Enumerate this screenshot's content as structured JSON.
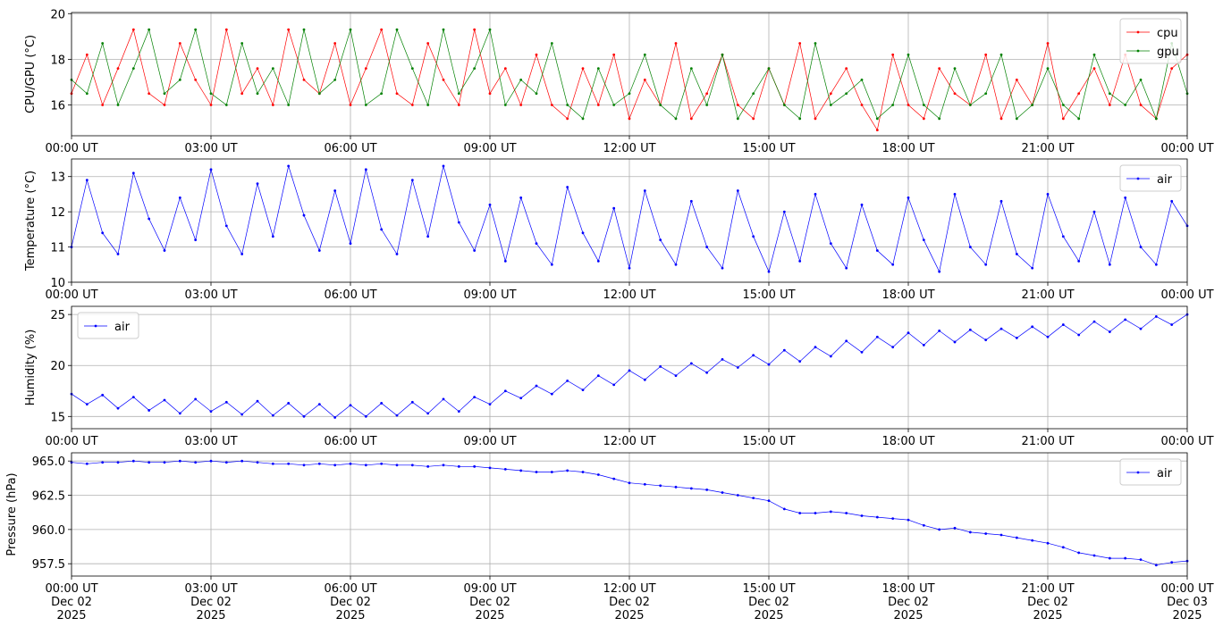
{
  "chart_data": [
    {
      "type": "line",
      "ylabel": "CPU/GPU (°C)",
      "legend": "upper right",
      "grid": true,
      "x": [
        0,
        20,
        40,
        60,
        80,
        100,
        120,
        140,
        160,
        180,
        200,
        220,
        240,
        260,
        280,
        300,
        320,
        340,
        360,
        380,
        400,
        420,
        440,
        460,
        480,
        500,
        520,
        540,
        560,
        580,
        600,
        620,
        640,
        660,
        680,
        700,
        720,
        740,
        760,
        780,
        800,
        820,
        840,
        860,
        880,
        900,
        920,
        940,
        960,
        980,
        1000,
        1020,
        1040,
        1060,
        1080,
        1100,
        1120,
        1140,
        1160,
        1180,
        1200,
        1220,
        1240,
        1260,
        1280,
        1300,
        1320,
        1340,
        1360,
        1380,
        1400,
        1420,
        1440
      ],
      "series": [
        {
          "name": "cpu",
          "color": "#ff0000",
          "values": [
            16.5,
            18.2,
            16.0,
            17.6,
            19.3,
            16.5,
            16.0,
            18.7,
            17.1,
            16.0,
            19.3,
            16.5,
            17.6,
            16.0,
            19.3,
            17.1,
            16.5,
            18.7,
            16.0,
            17.6,
            19.3,
            16.5,
            16.0,
            18.7,
            17.1,
            16.0,
            19.3,
            16.5,
            17.6,
            16.0,
            18.2,
            16.0,
            15.4,
            17.6,
            16.0,
            18.2,
            15.4,
            17.1,
            16.0,
            18.7,
            15.4,
            16.5,
            18.2,
            16.0,
            15.4,
            17.6,
            16.0,
            18.7,
            15.4,
            16.5,
            17.6,
            16.0,
            14.9,
            18.2,
            16.0,
            15.4,
            17.6,
            16.5,
            16.0,
            18.2,
            15.4,
            17.1,
            16.0,
            18.7,
            15.4,
            16.5,
            17.6,
            16.0,
            18.2,
            16.0,
            15.4,
            17.6,
            18.2
          ]
        },
        {
          "name": "gpu",
          "color": "#008000",
          "values": [
            17.1,
            16.5,
            18.7,
            16.0,
            17.6,
            19.3,
            16.5,
            17.1,
            19.3,
            16.5,
            16.0,
            18.7,
            16.5,
            17.6,
            16.0,
            19.3,
            16.5,
            17.1,
            19.3,
            16.0,
            16.5,
            19.3,
            17.6,
            16.0,
            19.3,
            16.5,
            17.6,
            19.3,
            16.0,
            17.1,
            16.5,
            18.7,
            16.0,
            15.4,
            17.6,
            16.0,
            16.5,
            18.2,
            16.0,
            15.4,
            17.6,
            16.0,
            18.2,
            15.4,
            16.5,
            17.6,
            16.0,
            15.4,
            18.7,
            16.0,
            16.5,
            17.1,
            15.4,
            16.0,
            18.2,
            16.0,
            15.4,
            17.6,
            16.0,
            16.5,
            18.2,
            15.4,
            16.0,
            17.6,
            16.0,
            15.4,
            18.2,
            16.5,
            16.0,
            17.1,
            15.4,
            18.7,
            16.5
          ]
        }
      ],
      "xlim": [
        0,
        1440
      ],
      "xticks": [
        {
          "value": 0,
          "label": "00:00 UT"
        },
        {
          "value": 180,
          "label": "03:00 UT"
        },
        {
          "value": 360,
          "label": "06:00 UT"
        },
        {
          "value": 540,
          "label": "09:00 UT"
        },
        {
          "value": 720,
          "label": "12:00 UT"
        },
        {
          "value": 900,
          "label": "15:00 UT"
        },
        {
          "value": 1080,
          "label": "18:00 UT"
        },
        {
          "value": 1260,
          "label": "21:00 UT"
        },
        {
          "value": 1440,
          "label": "00:00 UT"
        }
      ],
      "ylim": [
        14.65,
        20.05
      ],
      "yticks": [
        16,
        18,
        20
      ]
    },
    {
      "type": "line",
      "ylabel": "Temperature (°C)",
      "legend": "upper right",
      "grid": true,
      "x": [
        0,
        20,
        40,
        60,
        80,
        100,
        120,
        140,
        160,
        180,
        200,
        220,
        240,
        260,
        280,
        300,
        320,
        340,
        360,
        380,
        400,
        420,
        440,
        460,
        480,
        500,
        520,
        540,
        560,
        580,
        600,
        620,
        640,
        660,
        680,
        700,
        720,
        740,
        760,
        780,
        800,
        820,
        840,
        860,
        880,
        900,
        920,
        940,
        960,
        980,
        1000,
        1020,
        1040,
        1060,
        1080,
        1100,
        1120,
        1140,
        1160,
        1180,
        1200,
        1220,
        1240,
        1260,
        1280,
        1300,
        1320,
        1340,
        1360,
        1380,
        1400,
        1420,
        1440
      ],
      "series": [
        {
          "name": "air",
          "color": "#0000ff",
          "values": [
            11.0,
            12.9,
            11.4,
            10.8,
            13.1,
            11.8,
            10.9,
            12.4,
            11.2,
            13.2,
            11.6,
            10.8,
            12.8,
            11.3,
            13.3,
            11.9,
            10.9,
            12.6,
            11.1,
            13.2,
            11.5,
            10.8,
            12.9,
            11.3,
            13.3,
            11.7,
            10.9,
            12.2,
            10.6,
            12.4,
            11.1,
            10.5,
            12.7,
            11.4,
            10.6,
            12.1,
            10.4,
            12.6,
            11.2,
            10.5,
            12.3,
            11.0,
            10.4,
            12.6,
            11.3,
            10.3,
            12.0,
            10.6,
            12.5,
            11.1,
            10.4,
            12.2,
            10.9,
            10.5,
            12.4,
            11.2,
            10.3,
            12.5,
            11.0,
            10.5,
            12.3,
            10.8,
            10.4,
            12.5,
            11.3,
            10.6,
            12.0,
            10.5,
            12.4,
            11.0,
            10.5,
            12.3,
            11.6
          ]
        }
      ],
      "xlim": [
        0,
        1440
      ],
      "xticks": [
        {
          "value": 0,
          "label": "00:00 UT"
        },
        {
          "value": 180,
          "label": "03:00 UT"
        },
        {
          "value": 360,
          "label": "06:00 UT"
        },
        {
          "value": 540,
          "label": "09:00 UT"
        },
        {
          "value": 720,
          "label": "12:00 UT"
        },
        {
          "value": 900,
          "label": "15:00 UT"
        },
        {
          "value": 1080,
          "label": "18:00 UT"
        },
        {
          "value": 1260,
          "label": "21:00 UT"
        },
        {
          "value": 1440,
          "label": "00:00 UT"
        }
      ],
      "ylim": [
        10,
        13.5
      ],
      "yticks": [
        10,
        11,
        12,
        13
      ]
    },
    {
      "type": "line",
      "ylabel": "Humidity (%)",
      "legend": "upper left",
      "grid": true,
      "x": [
        0,
        20,
        40,
        60,
        80,
        100,
        120,
        140,
        160,
        180,
        200,
        220,
        240,
        260,
        280,
        300,
        320,
        340,
        360,
        380,
        400,
        420,
        440,
        460,
        480,
        500,
        520,
        540,
        560,
        580,
        600,
        620,
        640,
        660,
        680,
        700,
        720,
        740,
        760,
        780,
        800,
        820,
        840,
        860,
        880,
        900,
        920,
        940,
        960,
        980,
        1000,
        1020,
        1040,
        1060,
        1080,
        1100,
        1120,
        1140,
        1160,
        1180,
        1200,
        1220,
        1240,
        1260,
        1280,
        1300,
        1320,
        1340,
        1360,
        1380,
        1400,
        1420,
        1440
      ],
      "series": [
        {
          "name": "air",
          "color": "#0000ff",
          "values": [
            17.2,
            16.2,
            17.1,
            15.8,
            16.9,
            15.6,
            16.6,
            15.3,
            16.7,
            15.5,
            16.4,
            15.2,
            16.5,
            15.1,
            16.3,
            15.0,
            16.2,
            14.9,
            16.1,
            15.0,
            16.3,
            15.1,
            16.4,
            15.3,
            16.7,
            15.5,
            16.9,
            16.2,
            17.5,
            16.8,
            18.0,
            17.2,
            18.5,
            17.6,
            19.0,
            18.1,
            19.5,
            18.6,
            19.9,
            19.0,
            20.2,
            19.3,
            20.6,
            19.8,
            21.0,
            20.1,
            21.5,
            20.4,
            21.8,
            20.9,
            22.4,
            21.3,
            22.8,
            21.8,
            23.2,
            22.0,
            23.4,
            22.3,
            23.5,
            22.5,
            23.6,
            22.7,
            23.8,
            22.8,
            24.0,
            23.0,
            24.3,
            23.3,
            24.5,
            23.6,
            24.8,
            24.0,
            25.0
          ]
        }
      ],
      "xlim": [
        0,
        1440
      ],
      "xticks": [
        {
          "value": 0,
          "label": "00:00 UT"
        },
        {
          "value": 180,
          "label": "03:00 UT"
        },
        {
          "value": 360,
          "label": "06:00 UT"
        },
        {
          "value": 540,
          "label": "09:00 UT"
        },
        {
          "value": 720,
          "label": "12:00 UT"
        },
        {
          "value": 900,
          "label": "15:00 UT"
        },
        {
          "value": 1080,
          "label": "18:00 UT"
        },
        {
          "value": 1260,
          "label": "21:00 UT"
        },
        {
          "value": 1440,
          "label": "00:00 UT"
        }
      ],
      "ylim": [
        13.8,
        25.8
      ],
      "yticks": [
        15,
        20,
        25
      ]
    },
    {
      "type": "line",
      "ylabel": "Pressure (hPa)",
      "legend": "upper right",
      "grid": true,
      "x": [
        0,
        20,
        40,
        60,
        80,
        100,
        120,
        140,
        160,
        180,
        200,
        220,
        240,
        260,
        280,
        300,
        320,
        340,
        360,
        380,
        400,
        420,
        440,
        460,
        480,
        500,
        520,
        540,
        560,
        580,
        600,
        620,
        640,
        660,
        680,
        700,
        720,
        740,
        760,
        780,
        800,
        820,
        840,
        860,
        880,
        900,
        920,
        940,
        960,
        980,
        1000,
        1020,
        1040,
        1060,
        1080,
        1100,
        1120,
        1140,
        1160,
        1180,
        1200,
        1220,
        1240,
        1260,
        1280,
        1300,
        1320,
        1340,
        1360,
        1380,
        1400,
        1420,
        1440
      ],
      "series": [
        {
          "name": "air",
          "color": "#0000ff",
          "values": [
            964.9,
            964.8,
            964.9,
            964.9,
            965.0,
            964.9,
            964.9,
            965.0,
            964.9,
            965.0,
            964.9,
            965.0,
            964.9,
            964.8,
            964.8,
            964.7,
            964.8,
            964.7,
            964.8,
            964.7,
            964.8,
            964.7,
            964.7,
            964.6,
            964.7,
            964.6,
            964.6,
            964.5,
            964.4,
            964.3,
            964.2,
            964.2,
            964.3,
            964.2,
            964.0,
            963.7,
            963.4,
            963.3,
            963.2,
            963.1,
            963.0,
            962.9,
            962.7,
            962.5,
            962.3,
            962.1,
            961.5,
            961.2,
            961.2,
            961.3,
            961.2,
            961.0,
            960.9,
            960.8,
            960.7,
            960.3,
            960.0,
            960.1,
            959.8,
            959.7,
            959.6,
            959.4,
            959.2,
            959.0,
            958.7,
            958.3,
            958.1,
            957.9,
            957.9,
            957.8,
            957.4,
            957.6,
            957.7
          ]
        }
      ],
      "xlim": [
        0,
        1440
      ],
      "xticks": [
        {
          "value": 0,
          "label": "00:00 UT\nDec 02\n2025"
        },
        {
          "value": 180,
          "label": "03:00 UT\nDec 02\n2025"
        },
        {
          "value": 360,
          "label": "06:00 UT\nDec 02\n2025"
        },
        {
          "value": 540,
          "label": "09:00 UT\nDec 02\n2025"
        },
        {
          "value": 720,
          "label": "12:00 UT\nDec 02\n2025"
        },
        {
          "value": 900,
          "label": "15:00 UT\nDec 02\n2025"
        },
        {
          "value": 1080,
          "label": "18:00 UT\nDec 02\n2025"
        },
        {
          "value": 1260,
          "label": "21:00 UT\nDec 02\n2025"
        },
        {
          "value": 1440,
          "label": "00:00 UT\nDec 03\n2025"
        }
      ],
      "ylim": [
        956.6,
        965.6
      ],
      "yticks": [
        957.5,
        {
          "value": 960,
          "label": "960.0"
        },
        962.5,
        {
          "value": 965,
          "label": "965.0"
        }
      ]
    }
  ]
}
